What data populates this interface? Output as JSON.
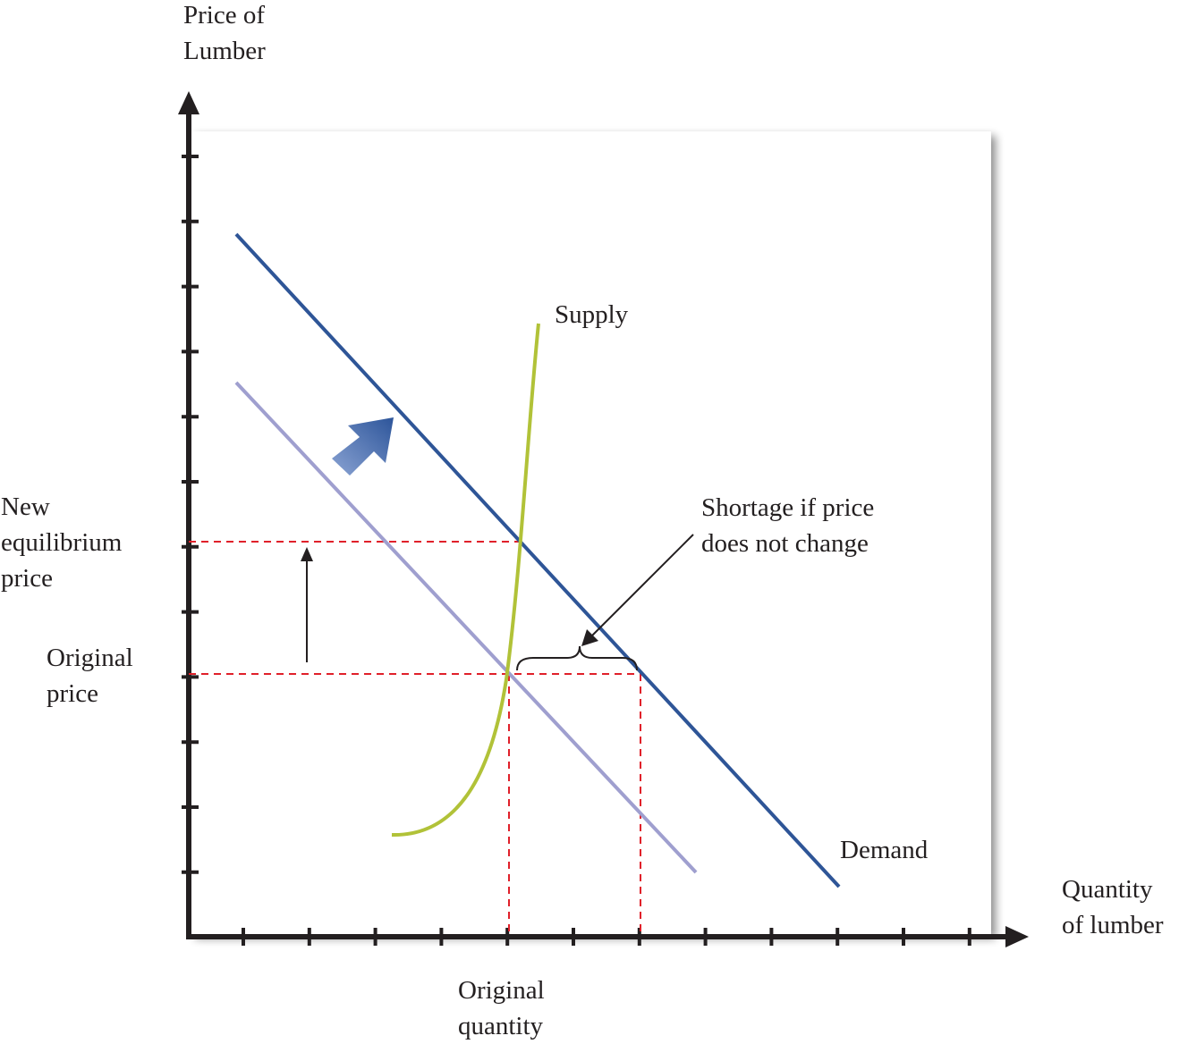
{
  "axes": {
    "y_label": [
      "Price of",
      "Lumber"
    ],
    "x_label": [
      "Quantity",
      "of lumber"
    ]
  },
  "labels": {
    "supply": "Supply",
    "demand": "Demand",
    "new_price": [
      "New",
      "equilibrium",
      "price"
    ],
    "original_price": [
      "Original",
      "price"
    ],
    "original_quantity": [
      "Original",
      "quantity"
    ],
    "shortage": [
      "Shortage if price",
      "does not change"
    ]
  },
  "colors": {
    "demand_new": "#2e5597",
    "demand_old": "#9f9fcf",
    "supply": "#b1c238",
    "guides": "#e0202a",
    "axis": "#231f20",
    "shift_arrow": "#3d64a8"
  },
  "chart_data": {
    "type": "line",
    "series": [
      {
        "name": "Demand",
        "kind": "demand-after-shift",
        "points": [
          [
            0.8,
            10.8
          ],
          [
            10.0,
            0.6
          ]
        ]
      },
      {
        "kind": "demand-before-shift",
        "points": [
          [
            0.8,
            8.5
          ],
          [
            7.8,
            0.8
          ]
        ]
      },
      {
        "name": "Supply",
        "kind": "supply",
        "points": [
          [
            3.2,
            1.5
          ],
          [
            4.4,
            3.5
          ],
          [
            4.8,
            5.0
          ],
          [
            5.1,
            9.4
          ]
        ]
      }
    ],
    "reference_points": {
      "original_price": 4.0,
      "new_equilibrium_price": 6.05,
      "original_quantity": 4.9,
      "quantity_demanded_at_original_price": 6.9
    },
    "annotations": [
      "Shortage if price does not change"
    ],
    "grid": false,
    "legend": "none"
  }
}
